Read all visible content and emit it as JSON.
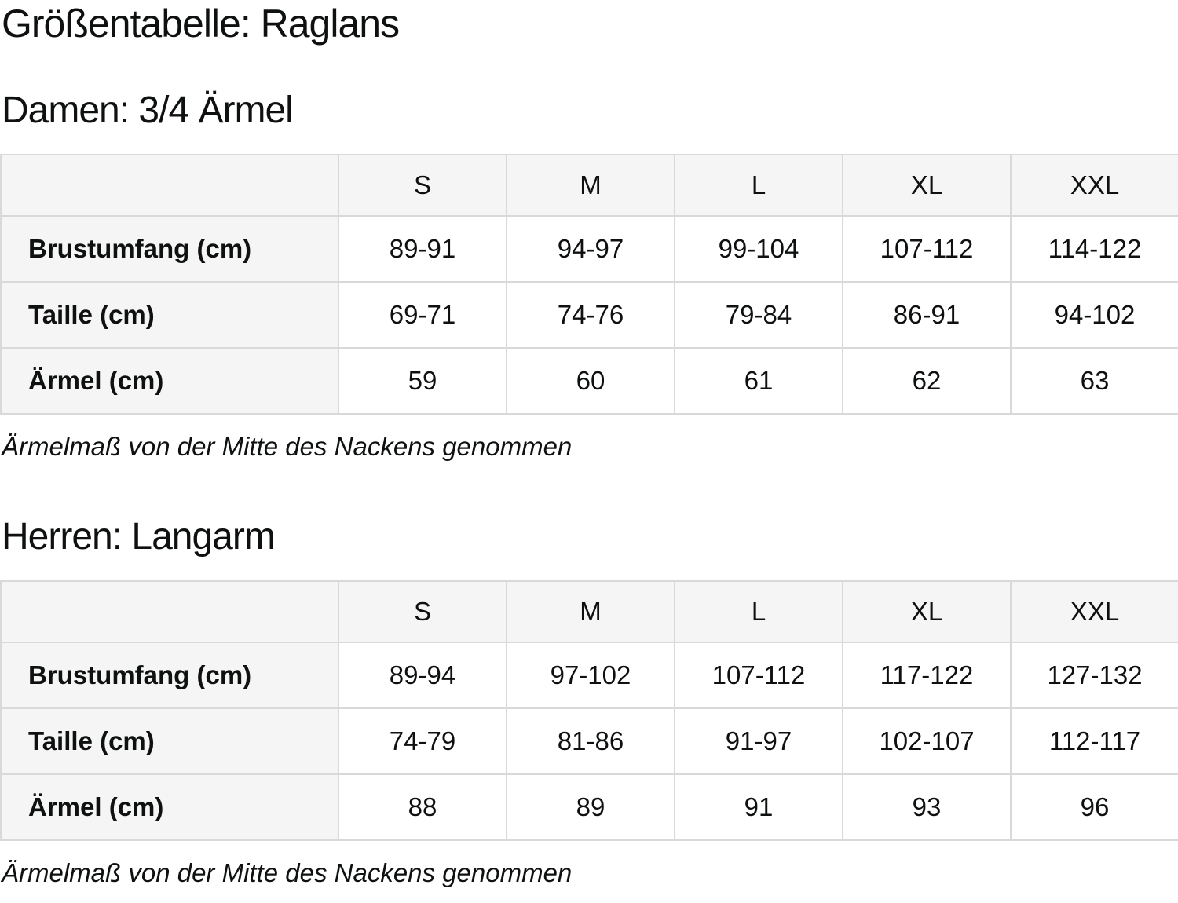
{
  "page_title": "Größentabelle: Raglans",
  "colors": {
    "header_bg": "#f5f5f5",
    "border": "#d9d9d9",
    "text": "#0f1111",
    "cell_bg": "#ffffff"
  },
  "sections": [
    {
      "id": "damen",
      "title": "Damen: 3/4 Ärmel",
      "note": "Ärmelmaß von der Mitte des Nackens genommen",
      "table": {
        "corner_label": "",
        "columns": [
          "S",
          "M",
          "L",
          "XL",
          "XXL"
        ],
        "rows": [
          {
            "label": "Brustumfang (cm)",
            "values": [
              "89-91",
              "94-97",
              "99-104",
              "107-112",
              "114-122"
            ]
          },
          {
            "label": "Taille (cm)",
            "values": [
              "69-71",
              "74-76",
              "79-84",
              "86-91",
              "94-102"
            ]
          },
          {
            "label": "Ärmel (cm)",
            "values": [
              "59",
              "60",
              "61",
              "62",
              "63"
            ]
          }
        ]
      }
    },
    {
      "id": "herren",
      "title": "Herren: Langarm",
      "note": "Ärmelmaß von der Mitte des Nackens genommen",
      "table": {
        "corner_label": "",
        "columns": [
          "S",
          "M",
          "L",
          "XL",
          "XXL"
        ],
        "rows": [
          {
            "label": "Brustumfang (cm)",
            "values": [
              "89-94",
              "97-102",
              "107-112",
              "117-122",
              "127-132"
            ]
          },
          {
            "label": "Taille (cm)",
            "values": [
              "74-79",
              "81-86",
              "91-97",
              "102-107",
              "112-117"
            ]
          },
          {
            "label": "Ärmel (cm)",
            "values": [
              "88",
              "89",
              "91",
              "93",
              "96"
            ]
          }
        ]
      }
    }
  ]
}
